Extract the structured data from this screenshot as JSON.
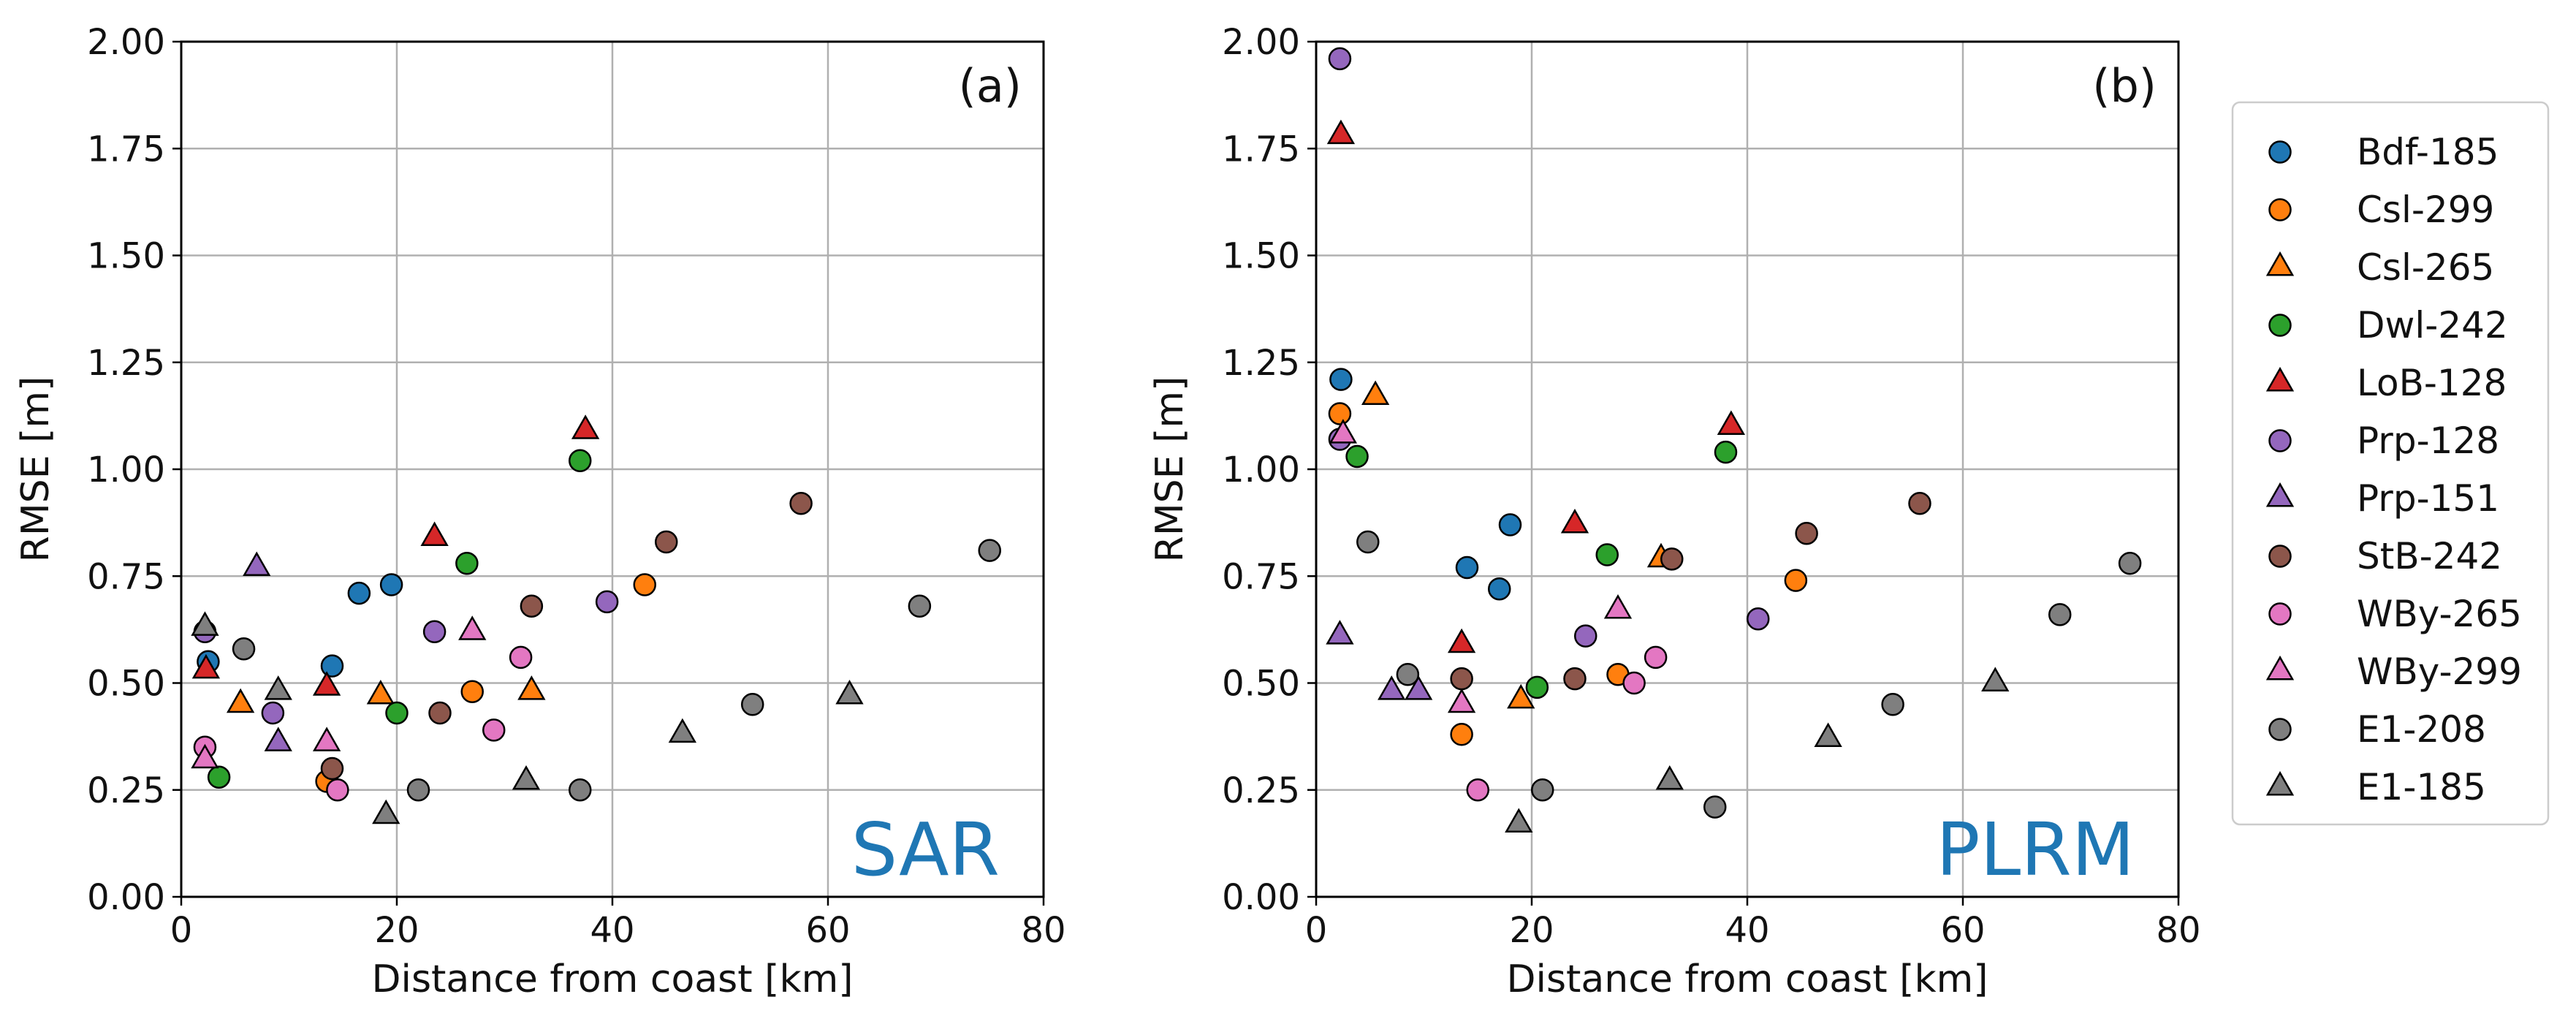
{
  "colors": {
    "Bdf-185": "#1f77b4",
    "Csl-299": "#ff7f0e",
    "Csl-265": "#ff7f0e",
    "Dwl-242": "#2ca02c",
    "LoB-128": "#d62728",
    "Prp-128": "#9467bd",
    "Prp-151": "#9467bd",
    "StB-242": "#8c564b",
    "WBy-265": "#e377c2",
    "WBy-299": "#e377c2",
    "E1-208": "#7f7f7f",
    "E1-185": "#7f7f7f",
    "watermark": "#1f77b4",
    "grid": "#b0b0b0"
  },
  "legend": {
    "entries": [
      {
        "label": "Bdf-185",
        "marker": "circle"
      },
      {
        "label": "Csl-299",
        "marker": "circle"
      },
      {
        "label": "Csl-265",
        "marker": "triangle"
      },
      {
        "label": "Dwl-242",
        "marker": "circle"
      },
      {
        "label": "LoB-128",
        "marker": "triangle"
      },
      {
        "label": "Prp-128",
        "marker": "circle"
      },
      {
        "label": "Prp-151",
        "marker": "triangle"
      },
      {
        "label": "StB-242",
        "marker": "circle"
      },
      {
        "label": "WBy-265",
        "marker": "circle"
      },
      {
        "label": "WBy-299",
        "marker": "triangle"
      },
      {
        "label": "E1-208",
        "marker": "circle"
      },
      {
        "label": "E1-185",
        "marker": "triangle"
      }
    ]
  },
  "chart_data": [
    {
      "type": "scatter",
      "panel_label": "(a)",
      "watermark": "SAR",
      "xlabel": "Distance from coast [km]",
      "ylabel": "RMSE [m]",
      "xlim": [
        0,
        80
      ],
      "ylim": [
        0,
        2.0
      ],
      "xticks": [
        "0",
        "20",
        "40",
        "60",
        "80"
      ],
      "yticks": [
        "0.00",
        "0.25",
        "0.50",
        "0.75",
        "1.00",
        "1.25",
        "1.50",
        "1.75",
        "2.00"
      ],
      "grid": true,
      "series": [
        {
          "name": "Bdf-185",
          "marker": "circle",
          "points": [
            [
              2.5,
              0.55
            ],
            [
              16.5,
              0.71
            ],
            [
              19.5,
              0.73
            ],
            [
              14,
              0.54
            ]
          ]
        },
        {
          "name": "Csl-299",
          "marker": "circle",
          "points": [
            [
              13.5,
              0.27
            ],
            [
              27,
              0.48
            ],
            [
              43,
              0.73
            ]
          ]
        },
        {
          "name": "Csl-265",
          "marker": "triangle",
          "points": [
            [
              5.5,
              0.45
            ],
            [
              18.5,
              0.47
            ],
            [
              32.5,
              0.48
            ]
          ]
        },
        {
          "name": "Dwl-242",
          "marker": "circle",
          "points": [
            [
              3.5,
              0.28
            ],
            [
              20,
              0.43
            ],
            [
              26.5,
              0.78
            ],
            [
              37,
              1.02
            ]
          ]
        },
        {
          "name": "LoB-128",
          "marker": "triangle",
          "points": [
            [
              2.3,
              0.53
            ],
            [
              13.5,
              0.49
            ],
            [
              23.5,
              0.84
            ],
            [
              37.5,
              1.09
            ]
          ]
        },
        {
          "name": "Prp-128",
          "marker": "circle",
          "points": [
            [
              2.2,
              0.62
            ],
            [
              8.5,
              0.43
            ],
            [
              23.5,
              0.62
            ],
            [
              39.5,
              0.69
            ]
          ]
        },
        {
          "name": "Prp-151",
          "marker": "triangle",
          "points": [
            [
              7,
              0.77
            ],
            [
              9,
              0.36
            ]
          ]
        },
        {
          "name": "StB-242",
          "marker": "circle",
          "points": [
            [
              14,
              0.3
            ],
            [
              24,
              0.43
            ],
            [
              32.5,
              0.68
            ],
            [
              45,
              0.83
            ],
            [
              57.5,
              0.92
            ]
          ]
        },
        {
          "name": "WBy-265",
          "marker": "circle",
          "points": [
            [
              2.2,
              0.35
            ],
            [
              14.5,
              0.25
            ],
            [
              29,
              0.39
            ],
            [
              31.5,
              0.56
            ]
          ]
        },
        {
          "name": "WBy-299",
          "marker": "triangle",
          "points": [
            [
              2.2,
              0.32
            ],
            [
              13.5,
              0.36
            ],
            [
              27,
              0.62
            ]
          ]
        },
        {
          "name": "E1-208",
          "marker": "circle",
          "points": [
            [
              5.8,
              0.58
            ],
            [
              22,
              0.25
            ],
            [
              37,
              0.25
            ],
            [
              53,
              0.45
            ],
            [
              68.5,
              0.68
            ],
            [
              75,
              0.81
            ]
          ]
        },
        {
          "name": "E1-185",
          "marker": "triangle",
          "points": [
            [
              2.2,
              0.63
            ],
            [
              9,
              0.48
            ],
            [
              19,
              0.19
            ],
            [
              32,
              0.27
            ],
            [
              46.5,
              0.38
            ],
            [
              62,
              0.47
            ]
          ]
        }
      ]
    },
    {
      "type": "scatter",
      "panel_label": "(b)",
      "watermark": "PLRM",
      "xlabel": "Distance from coast [km]",
      "ylabel": "RMSE [m]",
      "xlim": [
        0,
        80
      ],
      "ylim": [
        0,
        2.0
      ],
      "xticks": [
        "0",
        "20",
        "40",
        "60",
        "80"
      ],
      "yticks": [
        "0.00",
        "0.25",
        "0.50",
        "0.75",
        "1.00",
        "1.25",
        "1.50",
        "1.75",
        "2.00"
      ],
      "grid": true,
      "series": [
        {
          "name": "Bdf-185",
          "marker": "circle",
          "points": [
            [
              2.3,
              1.21
            ],
            [
              14,
              0.77
            ],
            [
              17,
              0.72
            ],
            [
              18,
              0.87
            ]
          ]
        },
        {
          "name": "Csl-299",
          "marker": "circle",
          "points": [
            [
              2.2,
              1.13
            ],
            [
              13.5,
              0.38
            ],
            [
              28,
              0.52
            ],
            [
              44.5,
              0.74
            ]
          ]
        },
        {
          "name": "Csl-265",
          "marker": "triangle",
          "points": [
            [
              5.5,
              1.17
            ],
            [
              19,
              0.46
            ],
            [
              32,
              0.79
            ]
          ]
        },
        {
          "name": "Dwl-242",
          "marker": "circle",
          "points": [
            [
              3.8,
              1.03
            ],
            [
              20.5,
              0.49
            ],
            [
              27,
              0.8
            ],
            [
              38,
              1.04
            ]
          ]
        },
        {
          "name": "LoB-128",
          "marker": "triangle",
          "points": [
            [
              2.3,
              1.78
            ],
            [
              13.5,
              0.59
            ],
            [
              24,
              0.87
            ],
            [
              38.5,
              1.1
            ]
          ]
        },
        {
          "name": "Prp-128",
          "marker": "circle",
          "points": [
            [
              2.2,
              1.96
            ],
            [
              2.2,
              1.07
            ],
            [
              25,
              0.61
            ],
            [
              41,
              0.65
            ]
          ]
        },
        {
          "name": "Prp-151",
          "marker": "triangle",
          "points": [
            [
              2.2,
              0.61
            ],
            [
              7,
              0.48
            ],
            [
              9.5,
              0.48
            ]
          ]
        },
        {
          "name": "StB-242",
          "marker": "circle",
          "points": [
            [
              13.5,
              0.51
            ],
            [
              24,
              0.51
            ],
            [
              33,
              0.79
            ],
            [
              45.5,
              0.85
            ],
            [
              56,
              0.92
            ]
          ]
        },
        {
          "name": "WBy-265",
          "marker": "circle",
          "points": [
            [
              15,
              0.25
            ],
            [
              29.5,
              0.5
            ],
            [
              31.5,
              0.56
            ]
          ]
        },
        {
          "name": "WBy-299",
          "marker": "triangle",
          "points": [
            [
              2.5,
              1.08
            ],
            [
              13.5,
              0.45
            ],
            [
              28,
              0.67
            ]
          ]
        },
        {
          "name": "E1-208",
          "marker": "circle",
          "points": [
            [
              4.8,
              0.83
            ],
            [
              8.5,
              0.52
            ],
            [
              21,
              0.25
            ],
            [
              37,
              0.21
            ],
            [
              53.5,
              0.45
            ],
            [
              69,
              0.66
            ],
            [
              75.5,
              0.78
            ]
          ]
        },
        {
          "name": "E1-185",
          "marker": "triangle",
          "points": [
            [
              18.8,
              0.17
            ],
            [
              32.8,
              0.27
            ],
            [
              47.5,
              0.37
            ],
            [
              63,
              0.5
            ]
          ]
        }
      ]
    }
  ]
}
